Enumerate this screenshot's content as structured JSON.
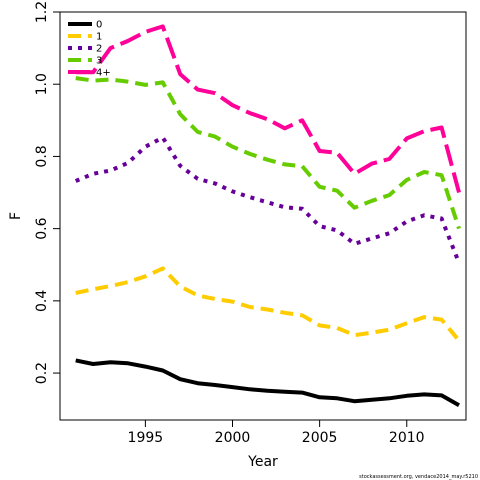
{
  "chart_data": {
    "type": "line",
    "xlabel": "Year",
    "ylabel": "F",
    "xlim": [
      1990.1,
      2013.4
    ],
    "ylim": [
      0.07,
      1.2
    ],
    "xticks": [
      1995,
      2000,
      2005,
      2010
    ],
    "yticks": [
      0.2,
      0.4,
      0.6,
      0.8,
      1.0,
      1.2
    ],
    "xtick_labels": [
      "1995",
      "2000",
      "2005",
      "2010"
    ],
    "ytick_labels": [
      "0.2",
      "0.4",
      "0.6",
      "0.8",
      "1.0",
      "1.2"
    ],
    "grid": false,
    "legend_position": "top-left",
    "x": [
      1991,
      1992,
      1993,
      1994,
      1995,
      1996,
      1997,
      1998,
      1999,
      2000,
      2001,
      2002,
      2003,
      2004,
      2005,
      2006,
      2007,
      2008,
      2009,
      2010,
      2011,
      2012,
      2013
    ],
    "series": [
      {
        "name": "0",
        "color": "#000000",
        "dash": "solid",
        "values": [
          0.235,
          0.225,
          0.23,
          0.227,
          0.218,
          0.207,
          0.183,
          0.172,
          0.167,
          0.161,
          0.155,
          0.151,
          0.148,
          0.146,
          0.133,
          0.13,
          0.122,
          0.126,
          0.13,
          0.137,
          0.141,
          0.138,
          0.111
        ]
      },
      {
        "name": "1",
        "color": "#ffcc00",
        "dash": "dashed",
        "values": [
          0.422,
          0.432,
          0.441,
          0.452,
          0.468,
          0.49,
          0.44,
          0.415,
          0.405,
          0.398,
          0.383,
          0.376,
          0.367,
          0.36,
          0.332,
          0.325,
          0.305,
          0.312,
          0.32,
          0.338,
          0.355,
          0.348,
          0.29
        ]
      },
      {
        "name": "2",
        "color": "#660099",
        "dash": "dotted",
        "values": [
          0.732,
          0.752,
          0.761,
          0.782,
          0.827,
          0.852,
          0.774,
          0.738,
          0.725,
          0.703,
          0.687,
          0.673,
          0.659,
          0.655,
          0.607,
          0.595,
          0.558,
          0.573,
          0.587,
          0.62,
          0.637,
          0.628,
          0.505
        ]
      },
      {
        "name": "3",
        "color": "#66cc00",
        "dash": "dashed",
        "values": [
          1.017,
          1.01,
          1.013,
          1.007,
          0.998,
          1.005,
          0.917,
          0.868,
          0.855,
          0.827,
          0.807,
          0.791,
          0.778,
          0.773,
          0.716,
          0.705,
          0.658,
          0.677,
          0.693,
          0.735,
          0.757,
          0.748,
          0.6
        ]
      },
      {
        "name": "4+",
        "color": "#ff0099",
        "dash": "longdash",
        "values": [
          1.033,
          1.033,
          1.1,
          1.12,
          1.145,
          1.16,
          1.028,
          0.985,
          0.975,
          0.942,
          0.92,
          0.903,
          0.878,
          0.9,
          0.815,
          0.81,
          0.752,
          0.78,
          0.793,
          0.85,
          0.87,
          0.88,
          0.7
        ]
      }
    ]
  },
  "credit": "stockassessment.org, vendace2014_may.r5210"
}
